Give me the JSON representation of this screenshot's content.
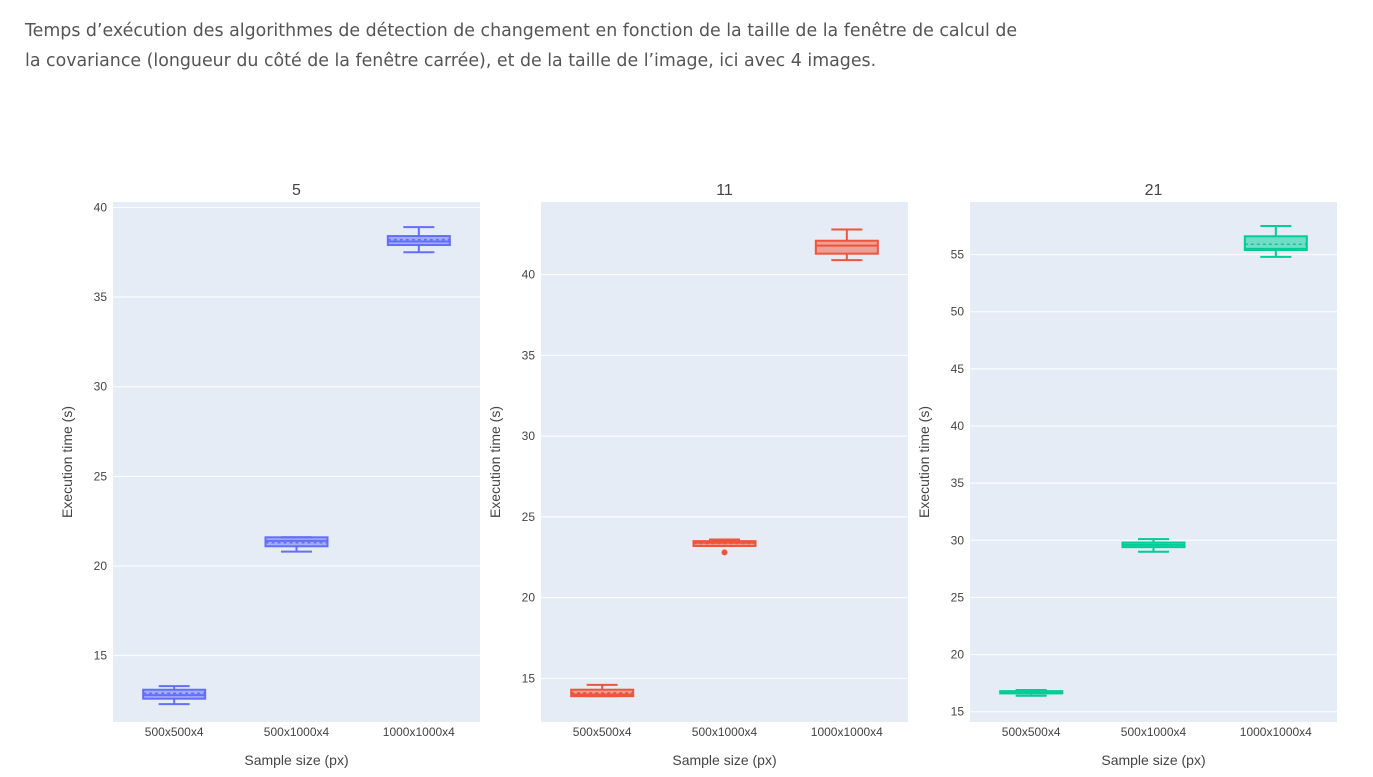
{
  "caption": "Temps d’exécution des algorithmes de détection de changement en fonction de la taille de la fenêtre de calcul de la covariance (longueur du côté de la fenêtre carrée), et de la taille de l’image, ici avec 4 images.",
  "chart_data": [
    {
      "type": "box",
      "title": "5",
      "xlabel": "Sample size (px)",
      "ylabel": "Execution time (s)",
      "categories": [
        "500x500x4",
        "500x1000x4",
        "1000x1000x4"
      ],
      "yticks": [
        15,
        20,
        25,
        30,
        35,
        40
      ],
      "ylim": [
        11.3,
        40.3
      ],
      "color": "#636efa",
      "fill": "rgba(99,110,250,0.5)",
      "boxes": [
        {
          "min": 12.3,
          "q1": 12.6,
          "median": 12.8,
          "q3": 13.1,
          "max": 13.3,
          "mean": 12.9,
          "outliers": []
        },
        {
          "min": 20.8,
          "q1": 21.1,
          "median": 21.4,
          "q3": 21.6,
          "max": 21.6,
          "mean": 21.3,
          "outliers": []
        },
        {
          "min": 37.5,
          "q1": 37.9,
          "median": 38.1,
          "q3": 38.4,
          "max": 38.9,
          "mean": 38.2,
          "outliers": []
        }
      ]
    },
    {
      "type": "box",
      "title": "11",
      "xlabel": "Sample size (px)",
      "ylabel": "Execution time (s)",
      "categories": [
        "500x500x4",
        "500x1000x4",
        "1000x1000x4"
      ],
      "yticks": [
        15,
        20,
        25,
        30,
        35,
        40
      ],
      "ylim": [
        12.3,
        44.5
      ],
      "color": "#ef553b",
      "fill": "rgba(239,85,59,0.5)",
      "boxes": [
        {
          "min": 13.9,
          "q1": 13.9,
          "median": 14.0,
          "q3": 14.3,
          "max": 14.6,
          "mean": 14.1,
          "outliers": []
        },
        {
          "min": 23.2,
          "q1": 23.2,
          "median": 23.4,
          "q3": 23.5,
          "max": 23.6,
          "mean": 23.35,
          "outliers": [
            22.8
          ]
        },
        {
          "min": 40.9,
          "q1": 41.3,
          "median": 41.8,
          "q3": 42.1,
          "max": 42.8,
          "mean": 41.8,
          "outliers": []
        }
      ]
    },
    {
      "type": "box",
      "title": "21",
      "xlabel": "Sample size (px)",
      "ylabel": "Execution time (s)",
      "categories": [
        "500x500x4",
        "500x1000x4",
        "1000x1000x4"
      ],
      "yticks": [
        15,
        20,
        25,
        30,
        35,
        40,
        45,
        50,
        55
      ],
      "ylim": [
        14.1,
        59.6
      ],
      "color": "#00cc96",
      "fill": "rgba(0,204,150,0.5)",
      "boxes": [
        {
          "min": 16.4,
          "q1": 16.6,
          "median": 16.7,
          "q3": 16.8,
          "max": 16.9,
          "mean": 16.7,
          "outliers": []
        },
        {
          "min": 29.0,
          "q1": 29.4,
          "median": 29.6,
          "q3": 29.8,
          "max": 30.1,
          "mean": 29.6,
          "outliers": []
        },
        {
          "min": 54.8,
          "q1": 55.4,
          "median": 55.5,
          "q3": 56.6,
          "max": 57.5,
          "mean": 55.9,
          "outliers": []
        }
      ]
    }
  ]
}
